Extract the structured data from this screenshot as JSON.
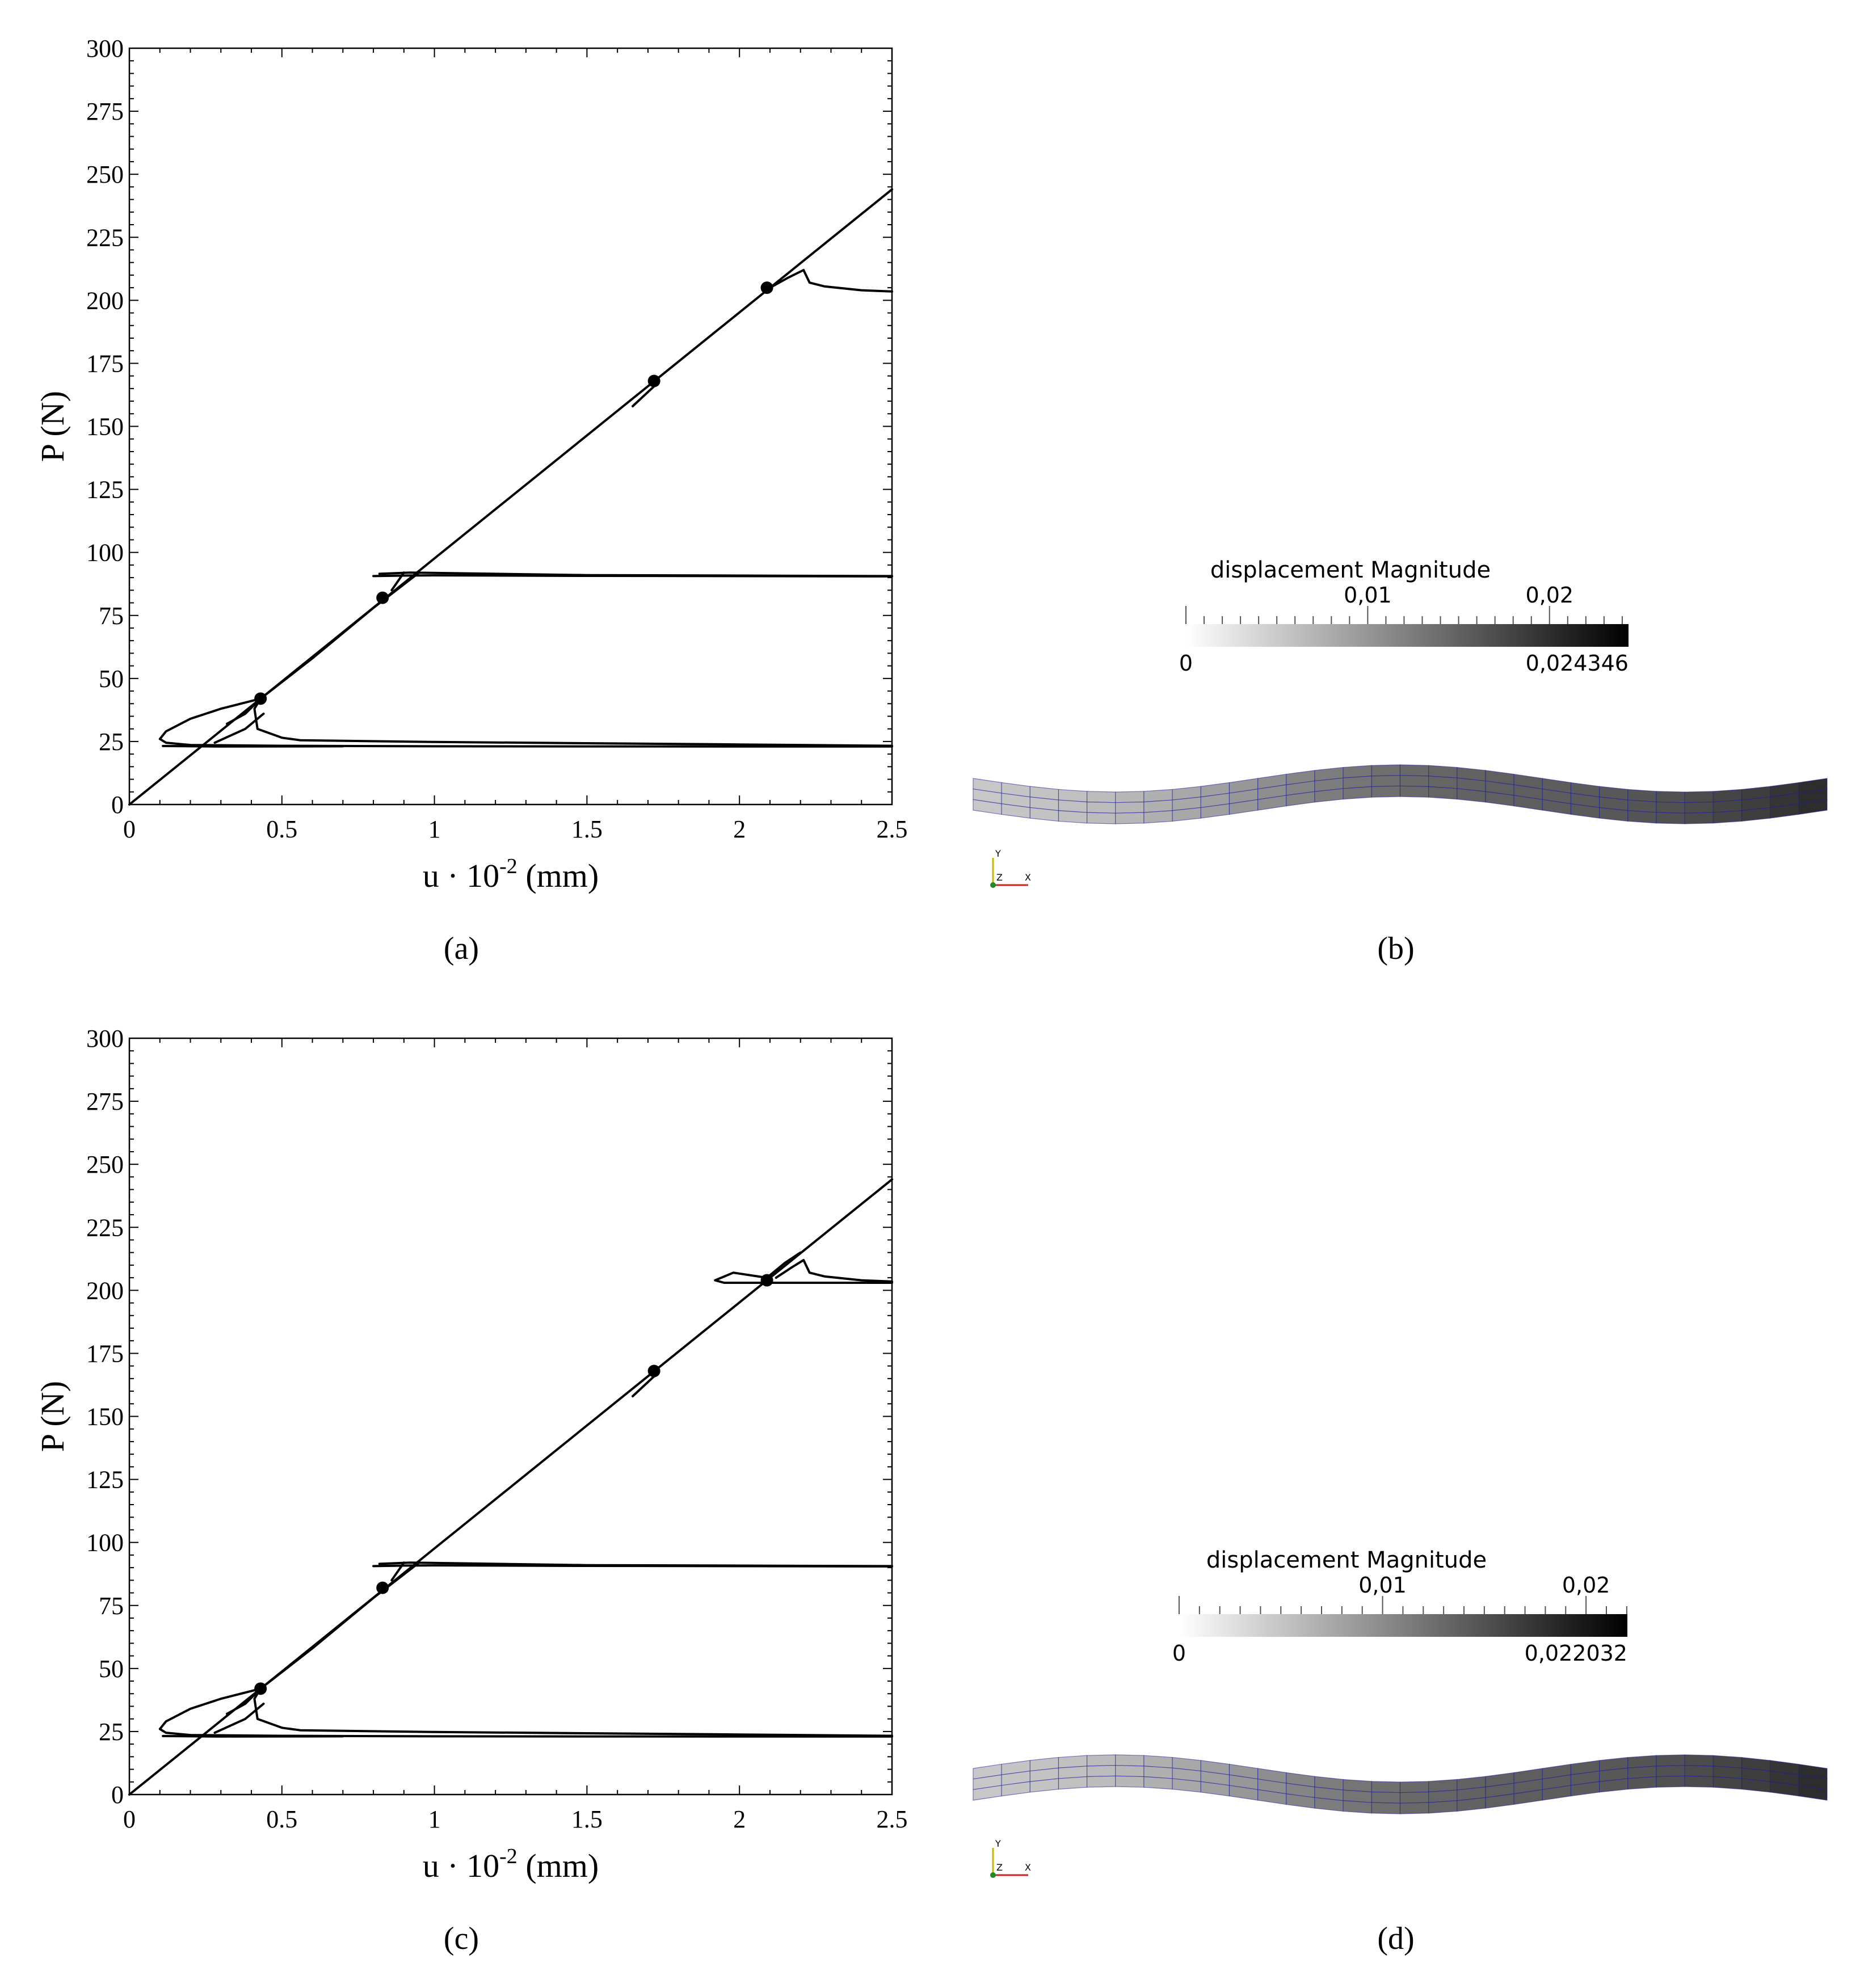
{
  "subfigure_labels": [
    "(a)",
    "(b)",
    "(c)",
    "(d)"
  ],
  "chart_data": [
    {
      "type": "line",
      "panel": "(a)",
      "xlabel_main": "u",
      "xlabel_dot": "·",
      "xlabel_base": "10",
      "xlabel_exp": "-2",
      "xlabel_unit": "(mm)",
      "ylabel": "P (N)",
      "xlim": [
        0,
        2.5
      ],
      "ylim": [
        0,
        300
      ],
      "xticks": [
        0,
        0.5,
        1,
        1.5,
        2,
        2.5
      ],
      "xtick_labels": [
        "0",
        "0.5",
        "1",
        "1.5",
        "2",
        "2.5"
      ],
      "yticks": [
        0,
        25,
        50,
        75,
        100,
        125,
        150,
        175,
        200,
        225,
        250,
        275,
        300
      ],
      "ytick_labels": [
        "0",
        "25",
        "50",
        "75",
        "100",
        "125",
        "150",
        "175",
        "200",
        "225",
        "250",
        "275",
        "300"
      ],
      "line_color": "#000000",
      "series": [
        {
          "x": [
            0,
            2.5
          ],
          "y": [
            0,
            244
          ]
        },
        {
          "x": [
            0.32,
            0.38,
            0.43,
            0.6,
            0.8,
            0.95
          ],
          "y": [
            32,
            36,
            42,
            58,
            78,
            92
          ]
        },
        {
          "x": [
            0.43,
            0.3,
            0.2,
            0.12,
            0.1,
            0.12,
            0.2,
            0.5,
            1.0,
            2.0,
            2.5
          ],
          "y": [
            42,
            38,
            34,
            29,
            26,
            24.5,
            23.6,
            23.3,
            23.1,
            23.0,
            23.0
          ]
        },
        {
          "x": [
            0.43,
            0.41,
            0.42,
            0.5,
            0.56,
            1.0,
            2.0,
            2.5
          ],
          "y": [
            42,
            38,
            30,
            26.5,
            25.5,
            24.8,
            23.8,
            23.3
          ]
        },
        {
          "x": [
            0.11,
            0.3,
            0.7
          ],
          "y": [
            23.2,
            23.0,
            23.1
          ]
        },
        {
          "x": [
            0.28,
            0.38,
            0.44
          ],
          "y": [
            24.5,
            30,
            36
          ]
        },
        {
          "x": [
            0.82,
            0.92,
            1.5,
            2.0,
            2.5
          ],
          "y": [
            91.5,
            92,
            91,
            90.8,
            90.6
          ]
        },
        {
          "x": [
            0.8,
            0.9,
            1.0,
            1.5,
            2.5
          ],
          "y": [
            90.6,
            90.8,
            90.9,
            90.7,
            90.5
          ]
        },
        {
          "x": [
            0.86,
            0.9
          ],
          "y": [
            85,
            92
          ]
        },
        {
          "x": [
            1.65,
            1.73
          ],
          "y": [
            158,
            167
          ]
        },
        {
          "x": [
            2.1,
            2.16,
            2.21
          ],
          "y": [
            205,
            209,
            212
          ]
        },
        {
          "x": [
            2.21,
            2.23,
            2.28,
            2.4,
            2.5
          ],
          "y": [
            212,
            207,
            205.5,
            204,
            203.5
          ]
        }
      ],
      "markers": {
        "x": [
          0.43,
          0.83,
          1.72,
          2.09
        ],
        "y": [
          42,
          82,
          168,
          205
        ]
      }
    },
    {
      "type": "line",
      "panel": "(c)",
      "xlabel_main": "u",
      "xlabel_dot": "·",
      "xlabel_base": "10",
      "xlabel_exp": "-2",
      "xlabel_unit": "(mm)",
      "ylabel": "P (N)",
      "xlim": [
        0,
        2.5
      ],
      "ylim": [
        0,
        300
      ],
      "xticks": [
        0,
        0.5,
        1,
        1.5,
        2,
        2.5
      ],
      "xtick_labels": [
        "0",
        "0.5",
        "1",
        "1.5",
        "2",
        "2.5"
      ],
      "yticks": [
        0,
        25,
        50,
        75,
        100,
        125,
        150,
        175,
        200,
        225,
        250,
        275,
        300
      ],
      "ytick_labels": [
        "0",
        "25",
        "50",
        "75",
        "100",
        "125",
        "150",
        "175",
        "200",
        "225",
        "250",
        "275",
        "300"
      ],
      "line_color": "#000000",
      "series": [
        {
          "x": [
            0,
            2.5
          ],
          "y": [
            0,
            244
          ]
        },
        {
          "x": [
            0.32,
            0.38,
            0.43,
            0.6,
            0.8,
            0.95
          ],
          "y": [
            32,
            36,
            42,
            58,
            78,
            92
          ]
        },
        {
          "x": [
            0.43,
            0.3,
            0.2,
            0.12,
            0.1,
            0.12,
            0.2,
            0.5,
            1.0,
            2.0,
            2.5
          ],
          "y": [
            42,
            38,
            34,
            29,
            26,
            24.5,
            23.6,
            23.3,
            23.1,
            23.0,
            23.0
          ]
        },
        {
          "x": [
            0.43,
            0.41,
            0.42,
            0.5,
            0.56,
            1.0,
            2.0,
            2.5
          ],
          "y": [
            42,
            38,
            30,
            26.5,
            25.5,
            24.8,
            23.8,
            23.3
          ]
        },
        {
          "x": [
            0.11,
            0.3,
            0.7
          ],
          "y": [
            23.2,
            23.0,
            23.1
          ]
        },
        {
          "x": [
            0.28,
            0.38,
            0.44
          ],
          "y": [
            24.5,
            30,
            36
          ]
        },
        {
          "x": [
            0.82,
            0.92,
            1.5,
            2.0,
            2.5
          ],
          "y": [
            91.5,
            92,
            91,
            90.8,
            90.6
          ]
        },
        {
          "x": [
            0.8,
            0.9,
            1.0,
            1.5,
            2.5
          ],
          "y": [
            90.6,
            90.8,
            90.9,
            90.7,
            90.5
          ]
        },
        {
          "x": [
            0.86,
            0.9
          ],
          "y": [
            85,
            92
          ]
        },
        {
          "x": [
            1.65,
            1.73
          ],
          "y": [
            158,
            167
          ]
        },
        {
          "x": [
            2.09,
            2.15,
            2.2
          ],
          "y": [
            205,
            211,
            215
          ]
        },
        {
          "x": [
            2.09,
            1.98,
            1.92,
            1.95,
            2.1,
            2.5
          ],
          "y": [
            205,
            207,
            204,
            203,
            203,
            203
          ]
        },
        {
          "x": [
            2.12,
            2.17,
            2.21
          ],
          "y": [
            205,
            209,
            212
          ]
        },
        {
          "x": [
            2.21,
            2.23,
            2.28,
            2.4,
            2.5
          ],
          "y": [
            212,
            207,
            205.5,
            204,
            203.5
          ]
        }
      ],
      "markers": {
        "x": [
          0.43,
          0.83,
          1.72,
          2.09
        ],
        "y": [
          42,
          82,
          168,
          204
        ]
      }
    }
  ],
  "contour_plots": [
    {
      "panel": "(b)",
      "legend_title": "displacement Magnitude",
      "min_label": "0",
      "max_label": "0,024346",
      "mid_labels": [
        "0,01",
        "0,02"
      ],
      "range": [
        0,
        0.024346
      ],
      "label_values": [
        0.01,
        0.02
      ],
      "axes_labels": [
        "Y",
        "Z",
        "X"
      ],
      "mesh_color": "#1a1aa0"
    },
    {
      "panel": "(d)",
      "legend_title": "displacement Magnitude",
      "min_label": "0",
      "max_label": "0,022032",
      "mid_labels": [
        "0,01",
        "0,02"
      ],
      "range": [
        0,
        0.022032
      ],
      "label_values": [
        0.01,
        0.02
      ],
      "axes_labels": [
        "Y",
        "Z",
        "X"
      ],
      "mesh_color": "#1a1aa0"
    }
  ]
}
